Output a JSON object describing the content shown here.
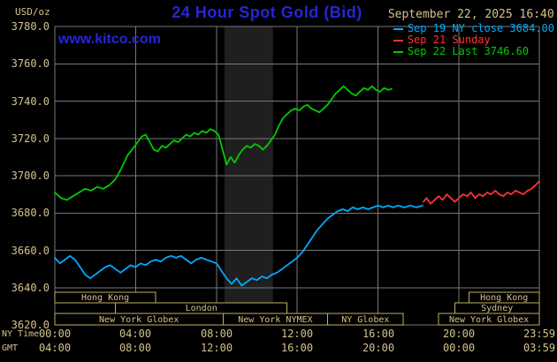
{
  "header": {
    "units_label": "USD/oz",
    "title": "24 Hour Spot Gold (Bid)",
    "datetime": "September 22, 2025 16:40",
    "watermark": "www.kitco.com"
  },
  "colors": {
    "background": "#000000",
    "grid": "#787878",
    "tick_text": "#d4c28a",
    "title_blue": "#2525d8",
    "session_border": "#bfae62",
    "shaded_band": "#1f1f1f"
  },
  "legend": [
    {
      "label": "Sep 19 NY close 3684.00",
      "color": "#00aaff"
    },
    {
      "label": "Sep 21 Sunday",
      "color": "#ff3333"
    },
    {
      "label": "Sep 22 Last 3746.60",
      "color": "#00cc00"
    }
  ],
  "axes": {
    "ny_label": "NY Time",
    "gmt_label": "GMT",
    "y_ticks": [
      "3780.0",
      "3760.0",
      "3740.0",
      "3720.0",
      "3700.0",
      "3680.0",
      "3660.0",
      "3640.0",
      "3620.0"
    ],
    "x_ticks_ny": [
      "00:00",
      "04:00",
      "08:00",
      "12:00",
      "16:00",
      "20:00",
      "23:59"
    ],
    "x_ticks_gmt": [
      "04:00",
      "08:00",
      "12:00",
      "16:00",
      "20:00",
      "00:00",
      "03:59"
    ]
  },
  "sessions": [
    {
      "label": "Hong Kong",
      "row": 0,
      "start": 0,
      "end": 5.0
    },
    {
      "label": "Hong Kong",
      "row": 0,
      "start": 20.5,
      "end": 23.983
    },
    {
      "label": "London",
      "row": 1,
      "start": 3.0,
      "end": 11.5
    },
    {
      "label": "Sydney",
      "row": 1,
      "start": 19.8,
      "end": 23.983
    },
    {
      "label": "New York Globex",
      "row": 2,
      "start": 0,
      "end": 8.33
    },
    {
      "label": "New York NYMEX",
      "row": 2,
      "start": 8.33,
      "end": 13.5
    },
    {
      "label": "NY Globex",
      "row": 2,
      "start": 13.5,
      "end": 17.25
    },
    {
      "label": "New York Globex",
      "row": 2,
      "start": 19.0,
      "end": 23.983
    }
  ],
  "chart_data": {
    "type": "line",
    "title": "24 Hour Spot Gold (Bid)",
    "ylabel": "USD/oz",
    "xlabel": "NY Time (hours)",
    "ylim": [
      3620,
      3780
    ],
    "y_tick_interval": 20,
    "xlim_hours": [
      0,
      23.983
    ],
    "x_tick_hours": [
      0,
      4,
      8,
      12,
      16,
      20,
      23.983
    ],
    "shaded_region_hours": [
      8.4,
      10.8
    ],
    "grid": true,
    "legend_position": "top-right",
    "series": [
      {
        "name": "Sep 19 NY close",
        "color": "#00aaff",
        "close_value": 3684.0,
        "points": [
          [
            0,
            3656
          ],
          [
            0.25,
            3653
          ],
          [
            0.5,
            3655
          ],
          [
            0.75,
            3657
          ],
          [
            1,
            3655
          ],
          [
            1.25,
            3651
          ],
          [
            1.5,
            3647
          ],
          [
            1.75,
            3645
          ],
          [
            2,
            3647
          ],
          [
            2.25,
            3649
          ],
          [
            2.5,
            3651
          ],
          [
            2.75,
            3652
          ],
          [
            3,
            3650
          ],
          [
            3.25,
            3648
          ],
          [
            3.5,
            3650
          ],
          [
            3.75,
            3652
          ],
          [
            4,
            3651
          ],
          [
            4.25,
            3653
          ],
          [
            4.5,
            3652
          ],
          [
            4.75,
            3654
          ],
          [
            5,
            3655
          ],
          [
            5.25,
            3654
          ],
          [
            5.5,
            3656
          ],
          [
            5.75,
            3657
          ],
          [
            6,
            3656
          ],
          [
            6.25,
            3657
          ],
          [
            6.5,
            3655
          ],
          [
            6.75,
            3653
          ],
          [
            7,
            3655
          ],
          [
            7.25,
            3656
          ],
          [
            7.5,
            3655
          ],
          [
            7.75,
            3654
          ],
          [
            8,
            3653
          ],
          [
            8.25,
            3649
          ],
          [
            8.5,
            3645
          ],
          [
            8.75,
            3642
          ],
          [
            9,
            3645
          ],
          [
            9.25,
            3641
          ],
          [
            9.5,
            3643
          ],
          [
            9.75,
            3645
          ],
          [
            10,
            3644
          ],
          [
            10.25,
            3646
          ],
          [
            10.5,
            3645
          ],
          [
            10.75,
            3647
          ],
          [
            11,
            3648
          ],
          [
            11.25,
            3650
          ],
          [
            11.5,
            3652
          ],
          [
            11.75,
            3654
          ],
          [
            12,
            3656
          ],
          [
            12.25,
            3659
          ],
          [
            12.5,
            3663
          ],
          [
            12.75,
            3667
          ],
          [
            13,
            3671
          ],
          [
            13.25,
            3674
          ],
          [
            13.5,
            3677
          ],
          [
            13.75,
            3679
          ],
          [
            14,
            3681
          ],
          [
            14.25,
            3682
          ],
          [
            14.5,
            3681
          ],
          [
            14.75,
            3683
          ],
          [
            15,
            3682
          ],
          [
            15.25,
            3683
          ],
          [
            15.5,
            3682
          ],
          [
            15.75,
            3683
          ],
          [
            16,
            3684
          ],
          [
            16.25,
            3683
          ],
          [
            16.5,
            3684
          ],
          [
            16.75,
            3683
          ],
          [
            17,
            3684
          ],
          [
            17.3,
            3683
          ],
          [
            17.6,
            3684
          ],
          [
            17.9,
            3683
          ],
          [
            18.2,
            3684
          ]
        ]
      },
      {
        "name": "Sep 21 Sunday",
        "color": "#ff3333",
        "points": [
          [
            18.25,
            3686
          ],
          [
            18.4,
            3688
          ],
          [
            18.6,
            3685
          ],
          [
            18.8,
            3687
          ],
          [
            19,
            3689
          ],
          [
            19.2,
            3687
          ],
          [
            19.4,
            3690
          ],
          [
            19.6,
            3688
          ],
          [
            19.8,
            3686
          ],
          [
            20,
            3688
          ],
          [
            20.2,
            3690
          ],
          [
            20.4,
            3689
          ],
          [
            20.6,
            3691
          ],
          [
            20.8,
            3688
          ],
          [
            21,
            3690
          ],
          [
            21.2,
            3689
          ],
          [
            21.4,
            3691
          ],
          [
            21.6,
            3690
          ],
          [
            21.8,
            3692
          ],
          [
            22,
            3690
          ],
          [
            22.2,
            3689
          ],
          [
            22.4,
            3691
          ],
          [
            22.6,
            3690
          ],
          [
            22.8,
            3692
          ],
          [
            23,
            3691
          ],
          [
            23.2,
            3690
          ],
          [
            23.4,
            3692
          ],
          [
            23.6,
            3693
          ],
          [
            23.8,
            3695
          ],
          [
            23.983,
            3697
          ]
        ]
      },
      {
        "name": "Sep 22 Last",
        "color": "#00cc00",
        "last_value": 3746.6,
        "points": [
          [
            0,
            3691
          ],
          [
            0.3,
            3688
          ],
          [
            0.6,
            3687
          ],
          [
            0.9,
            3689
          ],
          [
            1.2,
            3691
          ],
          [
            1.5,
            3693
          ],
          [
            1.8,
            3692
          ],
          [
            2.1,
            3694
          ],
          [
            2.4,
            3693
          ],
          [
            2.7,
            3695
          ],
          [
            3,
            3698
          ],
          [
            3.3,
            3704
          ],
          [
            3.6,
            3711
          ],
          [
            3.9,
            3715
          ],
          [
            4.1,
            3718
          ],
          [
            4.3,
            3721
          ],
          [
            4.5,
            3722
          ],
          [
            4.7,
            3718
          ],
          [
            4.9,
            3714
          ],
          [
            5.1,
            3713
          ],
          [
            5.3,
            3716
          ],
          [
            5.5,
            3715
          ],
          [
            5.7,
            3717
          ],
          [
            5.9,
            3719
          ],
          [
            6.1,
            3718
          ],
          [
            6.3,
            3720
          ],
          [
            6.5,
            3722
          ],
          [
            6.7,
            3721
          ],
          [
            6.9,
            3723
          ],
          [
            7.1,
            3722
          ],
          [
            7.3,
            3724
          ],
          [
            7.5,
            3723
          ],
          [
            7.7,
            3725
          ],
          [
            7.9,
            3724
          ],
          [
            8.1,
            3722
          ],
          [
            8.3,
            3714
          ],
          [
            8.5,
            3706
          ],
          [
            8.7,
            3710
          ],
          [
            8.9,
            3707
          ],
          [
            9.1,
            3711
          ],
          [
            9.3,
            3714
          ],
          [
            9.5,
            3716
          ],
          [
            9.7,
            3715
          ],
          [
            9.9,
            3717
          ],
          [
            10.1,
            3716
          ],
          [
            10.3,
            3714
          ],
          [
            10.5,
            3716
          ],
          [
            10.7,
            3719
          ],
          [
            10.9,
            3722
          ],
          [
            11.1,
            3727
          ],
          [
            11.3,
            3731
          ],
          [
            11.5,
            3733
          ],
          [
            11.7,
            3735
          ],
          [
            11.9,
            3736
          ],
          [
            12.1,
            3735
          ],
          [
            12.3,
            3737
          ],
          [
            12.5,
            3738
          ],
          [
            12.7,
            3736
          ],
          [
            12.9,
            3735
          ],
          [
            13.1,
            3734
          ],
          [
            13.3,
            3736
          ],
          [
            13.5,
            3738
          ],
          [
            13.7,
            3741
          ],
          [
            13.9,
            3744
          ],
          [
            14.1,
            3746
          ],
          [
            14.3,
            3748
          ],
          [
            14.5,
            3746
          ],
          [
            14.7,
            3744
          ],
          [
            14.9,
            3743
          ],
          [
            15.1,
            3745
          ],
          [
            15.3,
            3747
          ],
          [
            15.5,
            3746
          ],
          [
            15.7,
            3748
          ],
          [
            15.9,
            3746
          ],
          [
            16.1,
            3745
          ],
          [
            16.3,
            3747
          ],
          [
            16.5,
            3746
          ],
          [
            16.67,
            3746.6
          ]
        ]
      }
    ]
  }
}
